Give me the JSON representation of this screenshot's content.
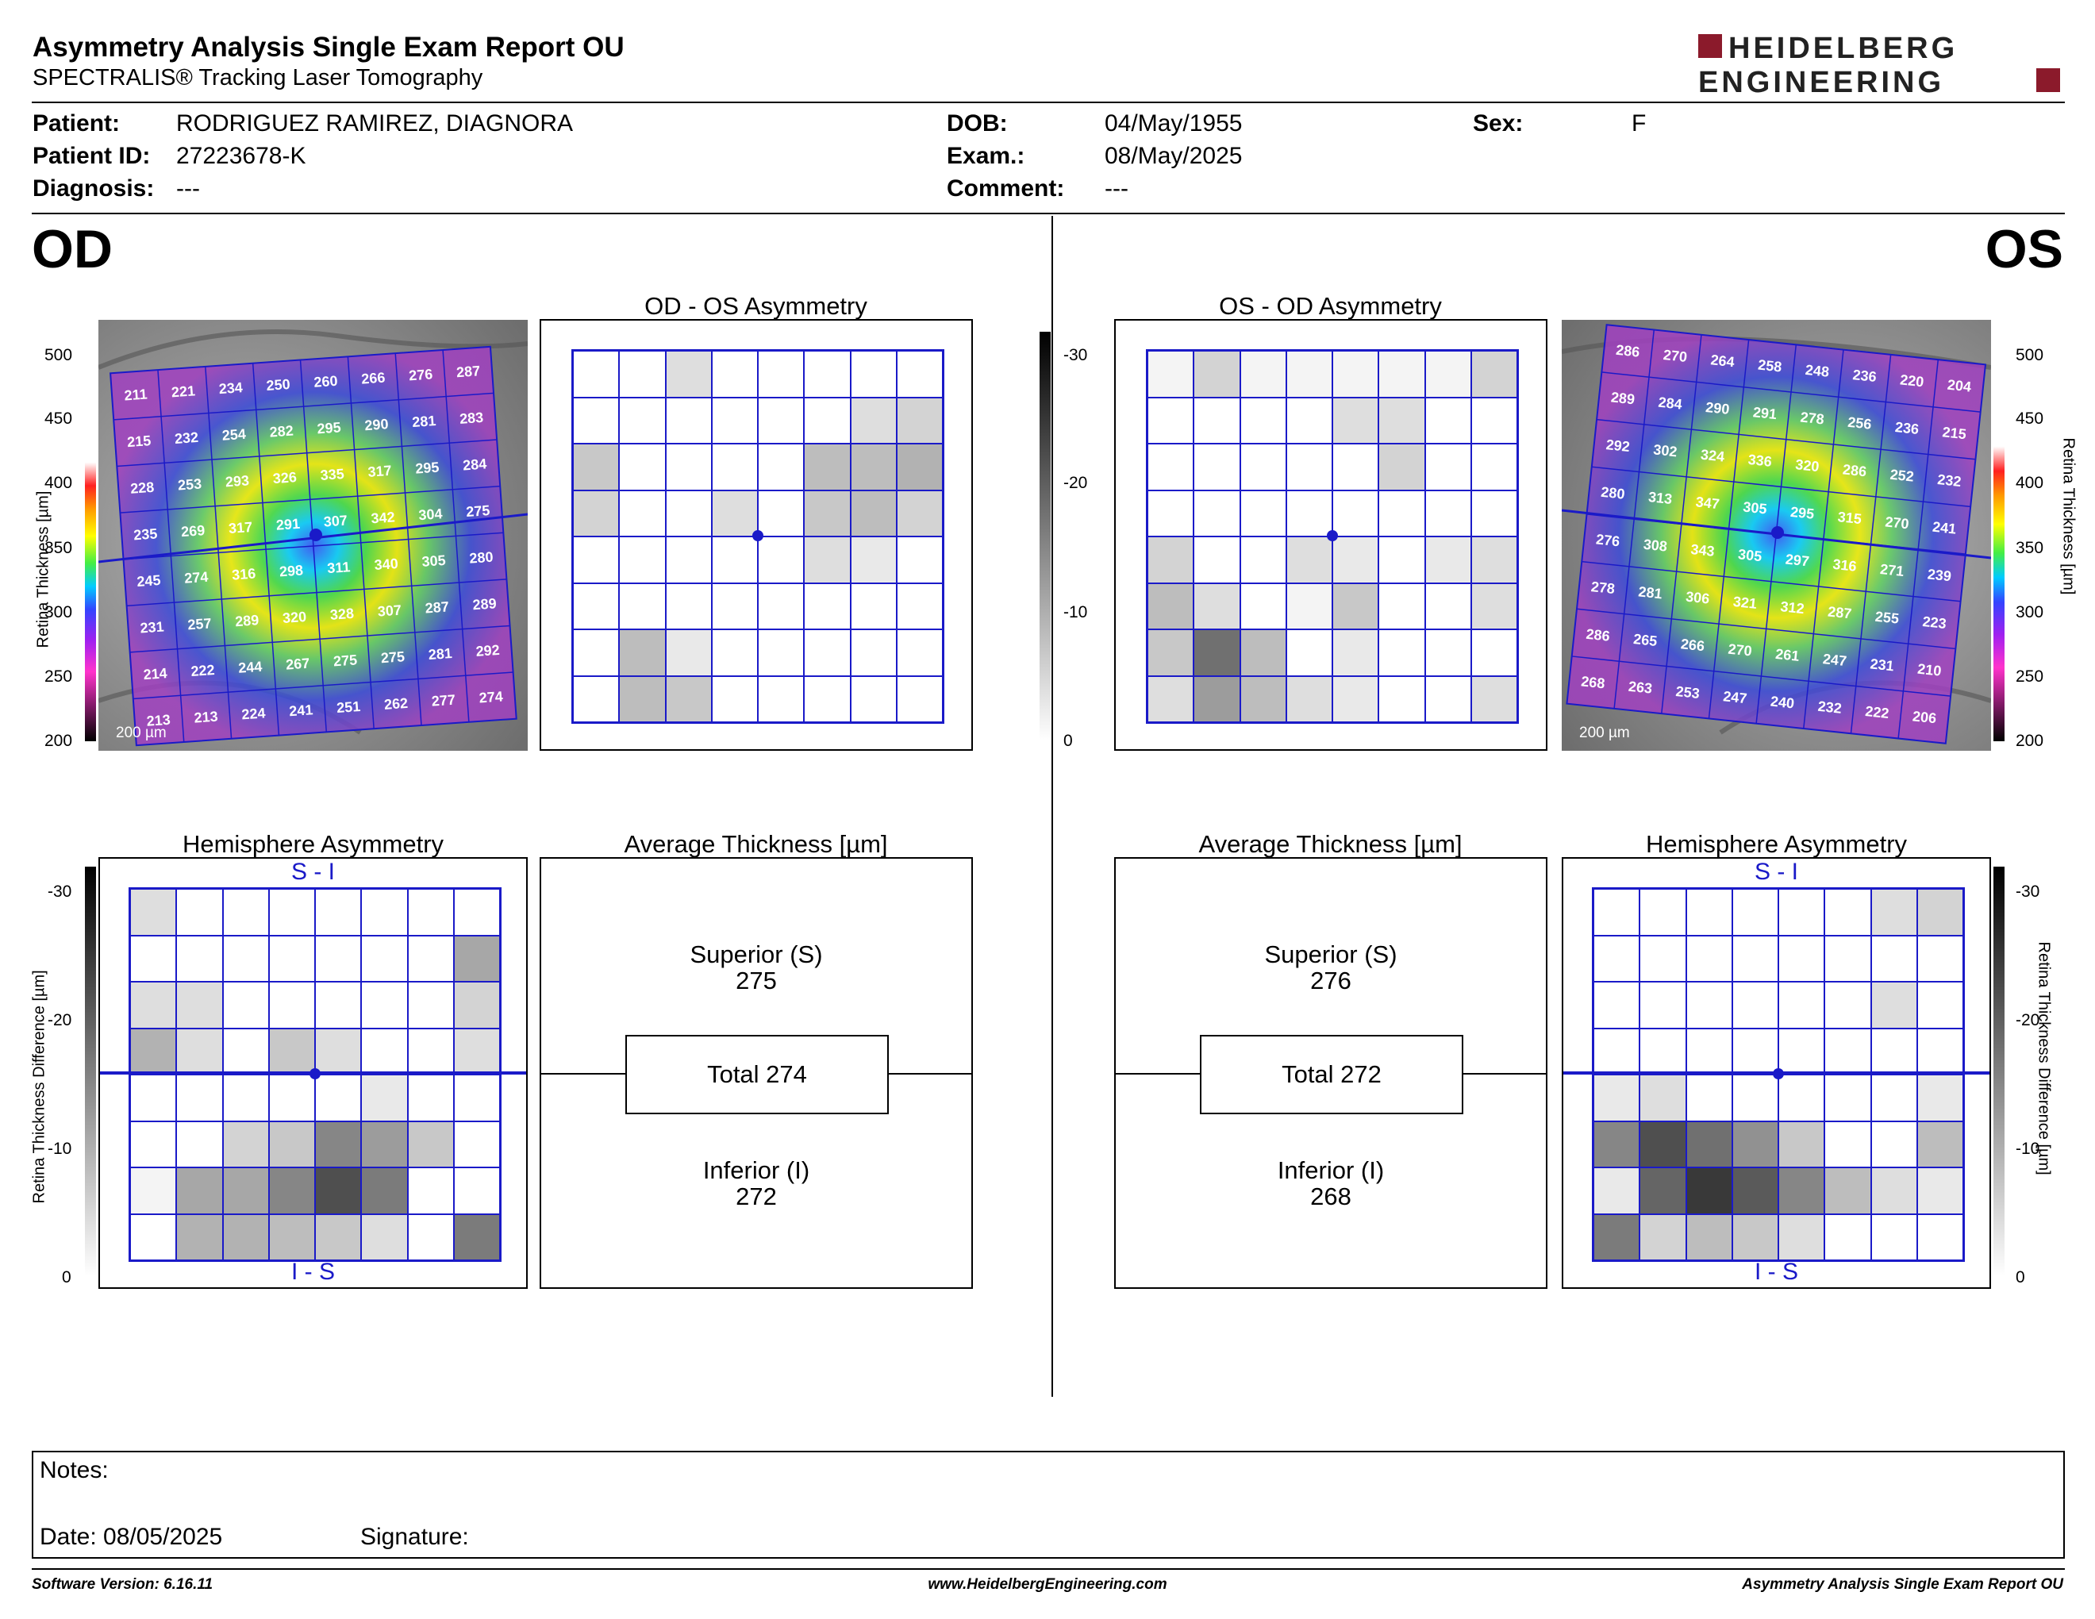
{
  "header": {
    "title": "Asymmetry Analysis Single Exam Report OU",
    "subtitle": "SPECTRALIS® Tracking Laser Tomography",
    "logo_line1": "HEIDELBERG",
    "logo_line2": "ENGINEERING",
    "brand_color": "#8b1a2b"
  },
  "patient": {
    "patient_label": "Patient:",
    "patient_value": "RODRIGUEZ RAMIREZ, DIAGNORA",
    "id_label": "Patient ID:",
    "id_value": "27223678-K",
    "diagnosis_label": "Diagnosis:",
    "diagnosis_value": "---",
    "dob_label": "DOB:",
    "dob_value": "04/May/1955",
    "exam_label": "Exam.:",
    "exam_value": "08/May/2025",
    "comment_label": "Comment:",
    "comment_value": "---",
    "sex_label": "Sex:",
    "sex_value": "F"
  },
  "od": {
    "eye_label": "OD",
    "asym_title": "OD - OS Asymmetry",
    "hemi_title": "Hemisphere Asymmetry",
    "avg_title": "Average Thickness [µm]",
    "scale_label": "200 µm",
    "hemi_top": "S - I",
    "hemi_bottom": "I - S",
    "superior_label": "Superior (S)",
    "superior_value": "275",
    "total_label": "Total 274",
    "inferior_label": "Inferior (I)",
    "inferior_value": "272",
    "thickness_grid": [
      [
        211,
        221,
        234,
        250,
        260,
        266,
        276,
        287
      ],
      [
        215,
        232,
        254,
        282,
        295,
        290,
        281,
        283
      ],
      [
        228,
        253,
        293,
        326,
        335,
        317,
        295,
        284
      ],
      [
        235,
        269,
        317,
        291,
        307,
        342,
        304,
        275
      ],
      [
        245,
        274,
        316,
        298,
        311,
        340,
        305,
        280
      ],
      [
        231,
        257,
        289,
        320,
        328,
        307,
        287,
        289
      ],
      [
        214,
        222,
        244,
        267,
        275,
        275,
        281,
        292
      ],
      [
        213,
        213,
        224,
        241,
        251,
        262,
        277,
        274
      ]
    ],
    "asym_grid": [
      [
        0,
        0,
        3,
        0,
        0,
        0,
        0,
        0
      ],
      [
        0,
        0,
        0,
        0,
        0,
        0,
        3,
        4
      ],
      [
        5,
        0,
        0,
        0,
        0,
        6,
        6,
        7
      ],
      [
        4,
        0,
        0,
        3,
        0,
        5,
        6,
        4
      ],
      [
        0,
        0,
        0,
        0,
        0,
        3,
        2,
        0
      ],
      [
        0,
        0,
        0,
        0,
        0,
        0,
        0,
        0
      ],
      [
        0,
        6,
        2,
        0,
        0,
        0,
        0,
        0
      ],
      [
        0,
        6,
        5,
        0,
        0,
        0,
        0,
        0
      ]
    ],
    "hemi_grid": [
      [
        3,
        0,
        0,
        0,
        0,
        0,
        0,
        0
      ],
      [
        0,
        0,
        0,
        0,
        0,
        0,
        0,
        8
      ],
      [
        3,
        3,
        0,
        0,
        0,
        0,
        0,
        4
      ],
      [
        7,
        3,
        0,
        5,
        3,
        0,
        0,
        3
      ],
      [
        0,
        0,
        0,
        0,
        0,
        2,
        0,
        0
      ],
      [
        0,
        0,
        4,
        5,
        11,
        9,
        5,
        0
      ],
      [
        1,
        8,
        8,
        11,
        16,
        12,
        0,
        0
      ],
      [
        0,
        7,
        7,
        6,
        5,
        3,
        0,
        12
      ]
    ]
  },
  "os": {
    "eye_label": "OS",
    "asym_title": "OS - OD Asymmetry",
    "hemi_title": "Hemisphere Asymmetry",
    "avg_title": "Average Thickness [µm]",
    "scale_label": "200 µm",
    "hemi_top": "S - I",
    "hemi_bottom": "I - S",
    "superior_label": "Superior (S)",
    "superior_value": "276",
    "total_label": "Total 272",
    "inferior_label": "Inferior (I)",
    "inferior_value": "268",
    "thickness_grid": [
      [
        286,
        270,
        264,
        258,
        248,
        236,
        220,
        204
      ],
      [
        289,
        284,
        290,
        291,
        278,
        256,
        236,
        215
      ],
      [
        292,
        302,
        324,
        336,
        320,
        286,
        252,
        232
      ],
      [
        280,
        313,
        347,
        305,
        295,
        315,
        270,
        241
      ],
      [
        276,
        308,
        343,
        305,
        297,
        316,
        271,
        239
      ],
      [
        278,
        281,
        306,
        321,
        312,
        287,
        255,
        223
      ],
      [
        286,
        265,
        266,
        270,
        261,
        247,
        231,
        210
      ],
      [
        268,
        263,
        253,
        247,
        240,
        232,
        222,
        206
      ]
    ],
    "asym_grid": [
      [
        1,
        4,
        1,
        1,
        1,
        1,
        1,
        4
      ],
      [
        0,
        0,
        0,
        0,
        3,
        3,
        0,
        0
      ],
      [
        0,
        0,
        0,
        0,
        0,
        4,
        0,
        0
      ],
      [
        0,
        0,
        0,
        0,
        0,
        0,
        0,
        0
      ],
      [
        4,
        0,
        0,
        3,
        2,
        0,
        2,
        3
      ],
      [
        6,
        3,
        0,
        1,
        5,
        0,
        0,
        3
      ],
      [
        5,
        13,
        6,
        0,
        2,
        0,
        0,
        0
      ],
      [
        3,
        9,
        6,
        3,
        2,
        0,
        0,
        3
      ]
    ],
    "hemi_grid": [
      [
        0,
        0,
        0,
        0,
        0,
        0,
        3,
        4
      ],
      [
        0,
        0,
        0,
        0,
        0,
        0,
        0,
        0
      ],
      [
        0,
        0,
        0,
        0,
        0,
        0,
        3,
        0
      ],
      [
        0,
        0,
        0,
        0,
        0,
        0,
        0,
        0
      ],
      [
        2,
        3,
        0,
        0,
        0,
        0,
        0,
        2
      ],
      [
        11,
        16,
        13,
        10,
        5,
        0,
        0,
        6
      ],
      [
        2,
        14,
        18,
        15,
        11,
        6,
        3,
        2
      ],
      [
        12,
        4,
        6,
        5,
        3,
        0,
        0,
        0
      ]
    ]
  },
  "scales": {
    "thickness_ticks": [
      "500",
      "450",
      "400",
      "350",
      "300",
      "250",
      "200"
    ],
    "diff_ticks": [
      "-30",
      "-20",
      "-10",
      "0"
    ],
    "thickness_axis_label": "Retina  Thickness [µm]",
    "diff_axis_label": "Retina Thickness Difference [µm]"
  },
  "notes": {
    "notes_label": "Notes:",
    "date_label": "Date: 08/05/2025",
    "signature_label": "Signature:"
  },
  "footer": {
    "version": "Software Version: 6.16.11",
    "website": "www.HeidelbergEngineering.com",
    "report_name": "Asymmetry Analysis Single Exam Report OU"
  }
}
